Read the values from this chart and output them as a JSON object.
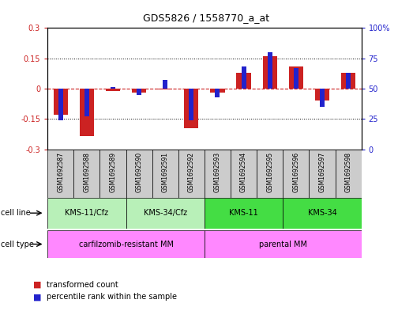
{
  "title": "GDS5826 / 1558770_a_at",
  "samples": [
    "GSM1692587",
    "GSM1692588",
    "GSM1692589",
    "GSM1692590",
    "GSM1692591",
    "GSM1692592",
    "GSM1692593",
    "GSM1692594",
    "GSM1692595",
    "GSM1692596",
    "GSM1692597",
    "GSM1692598"
  ],
  "red_values": [
    -0.13,
    -0.235,
    -0.01,
    -0.02,
    -0.005,
    -0.195,
    -0.02,
    0.08,
    0.16,
    0.11,
    -0.06,
    0.08
  ],
  "blue_values": [
    24,
    27,
    51,
    45,
    57,
    24,
    43,
    68,
    80,
    67,
    35,
    63
  ],
  "cell_line_labels": [
    "KMS-11/Cfz",
    "KMS-34/Cfz",
    "KMS-11",
    "KMS-34"
  ],
  "cell_line_ranges": [
    [
      0,
      2
    ],
    [
      3,
      5
    ],
    [
      6,
      8
    ],
    [
      9,
      11
    ]
  ],
  "cell_line_colors": [
    "#b8f0b8",
    "#b8f0b8",
    "#44dd44",
    "#44dd44"
  ],
  "cell_type_labels": [
    "carfilzomib-resistant MM",
    "parental MM"
  ],
  "cell_type_ranges": [
    [
      0,
      5
    ],
    [
      6,
      11
    ]
  ],
  "cell_type_color": "#ff88ff",
  "ylim_left": [
    -0.3,
    0.3
  ],
  "ylim_right": [
    0,
    100
  ],
  "yticks_left": [
    -0.3,
    -0.15,
    0.0,
    0.15,
    0.3
  ],
  "yticks_right": [
    0,
    25,
    50,
    75,
    100
  ],
  "ytick_labels_left": [
    "-0.3",
    "-0.15",
    "0",
    "0.15",
    "0.3"
  ],
  "ytick_labels_right": [
    "0",
    "25",
    "50",
    "75",
    "100%"
  ],
  "red_color": "#cc2222",
  "blue_color": "#2222cc",
  "red_bar_width": 0.55,
  "blue_bar_width": 0.18,
  "legend_red": "transformed count",
  "legend_blue": "percentile rank within the sample",
  "cell_line_row_label": "cell line",
  "cell_type_row_label": "cell type",
  "sample_box_color": "#cccccc"
}
